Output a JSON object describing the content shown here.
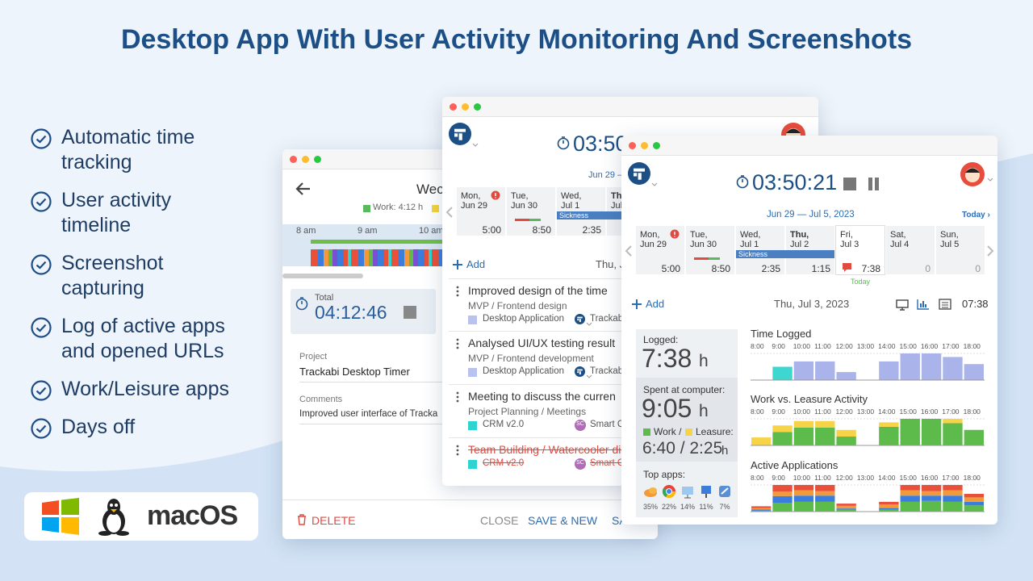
{
  "title": "Desktop App With User Activity Monitoring And Screenshots",
  "features": [
    "Automatic time tracking",
    "User activity timeline",
    "Screenshot capturing",
    "Log of active apps and opened URLs",
    "Work/Leisure apps",
    "Days off"
  ],
  "platform_label": "macOS",
  "windows": {
    "left": {
      "heading": "Wec",
      "legend": "Work: 4:12 h",
      "hours": [
        "8 am",
        "9 am",
        "10 am"
      ],
      "total_label": "Total",
      "total": "04:12:46",
      "project_label": "Project",
      "project": "Trackabi Desktop Timer",
      "comments_label": "Comments",
      "comment": "Improved user interface of Tracka",
      "actions": [
        "DELETE",
        "CLOSE",
        "SAVE & NEW",
        "SA"
      ]
    },
    "middle": {
      "timer": "03:50",
      "range": "Jun 29 –",
      "days": [
        {
          "day": "Mon,",
          "date": "Jun 29",
          "total": "5:00"
        },
        {
          "day": "Tue,",
          "date": "Jun 30",
          "total": "8:50"
        },
        {
          "day": "Wed,",
          "date": "Jul 1",
          "total": "2:35"
        },
        {
          "day": "Thu",
          "date": "Jul"
        }
      ],
      "sickness": "Sickness",
      "add": "Add",
      "date": "Thu, J",
      "entries": [
        {
          "title": "Improved design of the time",
          "project": "MVP / Frontend design",
          "tags": [
            {
              "text": "Desktop Application",
              "color": "#b9c1ef"
            },
            {
              "text": "Trackab"
            }
          ]
        },
        {
          "title": "Analysed UI/UX testing result",
          "project": "MVP / Frontend development",
          "tags": [
            {
              "text": "Desktop Application",
              "color": "#b9c1ef"
            },
            {
              "text": "Trackab"
            }
          ]
        },
        {
          "title": "Meeting to discuss the curren",
          "project": "Project Planning / Meetings",
          "tags": [
            {
              "text": "CRM v2.0",
              "color": "#2fd3d0"
            },
            {
              "badge": "SC",
              "text": "Smart Co. LLC"
            }
          ]
        },
        {
          "title": "Team Building / Watercooler discus",
          "struck": true,
          "tags": [
            {
              "text": "CRM v2.0",
              "color": "#2fd3d0"
            },
            {
              "badge": "SC",
              "text": "Smart Co. LLC"
            }
          ]
        }
      ]
    },
    "front": {
      "timer": "03:50:21",
      "range": "Jun 29 — Jul 5, 2023",
      "today_link": "Today ›",
      "days": [
        {
          "day": "Mon,",
          "date": "Jun 29",
          "total": "5:00"
        },
        {
          "day": "Tue,",
          "date": "Jun 30",
          "total": "8:50"
        },
        {
          "day": "Wed,",
          "date": "Jul 1",
          "total": "2:35"
        },
        {
          "day": "Thu,",
          "date": "Jul 2",
          "total": "1:15"
        },
        {
          "day": "Fri,",
          "date": "Jul 3",
          "total": "7:38"
        },
        {
          "day": "Sat,",
          "date": "Jul 4",
          "total": "0"
        },
        {
          "day": "Sun,",
          "date": "Jul 5",
          "total": "0"
        }
      ],
      "today_label": "Today",
      "sickness": "Sickness",
      "add": "Add",
      "date": "Thu, Jul 3, 2023",
      "time": "07:38",
      "logged_label": "Logged:",
      "logged": "7:38",
      "unit": "h",
      "computer_label": "Spent at computer:",
      "computer": "9:05",
      "work_label": "Work /",
      "leisure_label": "Leasure:",
      "split": "6:40 / 2:25",
      "apps_label": "Top apps:",
      "app_shares": [
        "35%",
        "22%",
        "14%",
        "11%",
        "7%"
      ]
    }
  },
  "chart_data": [
    {
      "type": "bar",
      "title": "Time Logged",
      "categories": [
        "8:00",
        "9:00",
        "10:00",
        "11:00",
        "12:00",
        "13:00",
        "14:00",
        "15:00",
        "16:00",
        "17:00",
        "18:00"
      ],
      "ylim": [
        0,
        60
      ],
      "series": [
        {
          "colors": [
            "#aab4ea",
            "#3dd6d0",
            "#aab4ea",
            "#aab4ea",
            "#aab4ea",
            "#aab4ea",
            "#aab4ea",
            "#aab4ea",
            "#aab4ea",
            "#aab4ea",
            "#aab4ea"
          ],
          "values": [
            0,
            30,
            42,
            42,
            18,
            0,
            42,
            60,
            60,
            52,
            36
          ]
        }
      ]
    },
    {
      "type": "bar",
      "title": "Work vs. Leasure Activity",
      "categories": [
        "8:00",
        "9:00",
        "10:00",
        "11:00",
        "12:00",
        "13:00",
        "14:00",
        "15:00",
        "16:00",
        "17:00",
        "18:00"
      ],
      "ylim": [
        0,
        60
      ],
      "series": [
        {
          "color": "#5cbb4a",
          "values": [
            0,
            30,
            40,
            40,
            20,
            0,
            42,
            60,
            60,
            50,
            35
          ]
        },
        {
          "color": "#f7d348",
          "values": [
            18,
            15,
            15,
            15,
            15,
            0,
            10,
            0,
            0,
            10,
            0
          ]
        }
      ]
    },
    {
      "type": "bar",
      "title": "Active Applications",
      "categories": [
        "8:00",
        "9:00",
        "10:00",
        "11:00",
        "12:00",
        "13:00",
        "14:00",
        "15:00",
        "16:00",
        "17:00",
        "18:00"
      ],
      "ylim": [
        0,
        60
      ],
      "series": [
        {
          "color": "#5cbb4a",
          "values": [
            2,
            20,
            22,
            22,
            4,
            0,
            4,
            22,
            24,
            22,
            14
          ]
        },
        {
          "color": "#3b7ddd",
          "values": [
            3,
            15,
            14,
            14,
            3,
            0,
            4,
            14,
            12,
            14,
            8
          ]
        },
        {
          "color": "#f29a3a",
          "values": [
            3,
            10,
            12,
            10,
            6,
            0,
            8,
            12,
            10,
            12,
            10
          ]
        },
        {
          "color": "#e8503a",
          "values": [
            4,
            15,
            12,
            14,
            5,
            0,
            6,
            12,
            14,
            12,
            8
          ]
        }
      ]
    }
  ]
}
